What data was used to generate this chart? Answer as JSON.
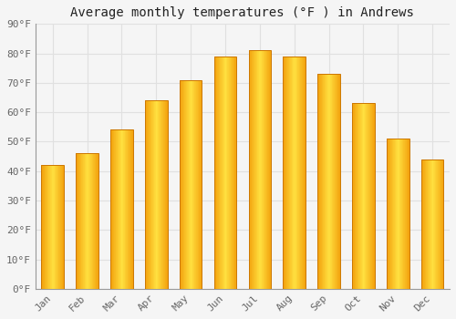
{
  "title": "Average monthly temperatures (°F ) in Andrews",
  "months": [
    "Jan",
    "Feb",
    "Mar",
    "Apr",
    "May",
    "Jun",
    "Jul",
    "Aug",
    "Sep",
    "Oct",
    "Nov",
    "Dec"
  ],
  "values": [
    42,
    46,
    54,
    64,
    71,
    79,
    81,
    79,
    73,
    63,
    51,
    44
  ],
  "ylim": [
    0,
    90
  ],
  "yticks": [
    0,
    10,
    20,
    30,
    40,
    50,
    60,
    70,
    80,
    90
  ],
  "ytick_labels": [
    "0°F",
    "10°F",
    "20°F",
    "30°F",
    "40°F",
    "50°F",
    "60°F",
    "70°F",
    "80°F",
    "90°F"
  ],
  "background_color": "#f5f5f5",
  "bar_edge_color": "#CC7700",
  "bar_outer_color": "#F5A800",
  "bar_inner_color": "#FFE066",
  "grid_color": "#e0e0e0",
  "title_fontsize": 10,
  "tick_fontsize": 8,
  "font_family": "monospace",
  "tick_color": "#666666",
  "bar_width": 0.65
}
